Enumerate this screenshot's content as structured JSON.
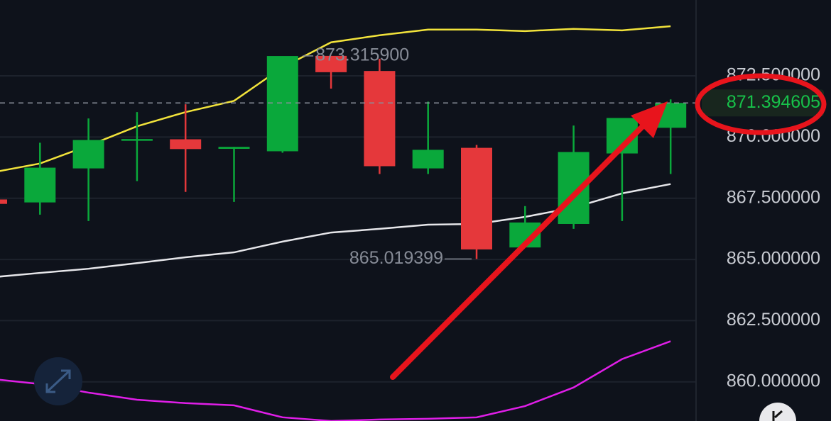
{
  "chart_data": {
    "type": "candlestick",
    "categories": [
      null,
      null,
      null,
      null,
      null,
      null,
      null,
      null,
      null,
      null,
      null,
      null,
      null,
      null,
      null
    ],
    "candles": {
      "open": [
        867.45,
        867.33,
        868.72,
        869.88,
        869.91,
        869.52,
        869.42,
        873.3159,
        872.7,
        868.72,
        869.56,
        865.49,
        866.45,
        869.33,
        870.38
      ],
      "high": [
        867.45,
        869.77,
        870.76,
        871.02,
        871.34,
        869.6,
        873.3,
        873.3159,
        873.2,
        871.45,
        869.68,
        867.18,
        870.47,
        870.78,
        871.54
      ],
      "low": [
        867.27,
        866.83,
        866.57,
        868.2,
        867.76,
        867.35,
        869.36,
        871.98,
        868.49,
        868.49,
        865.019399,
        865.49,
        866.25,
        866.57,
        868.49
      ],
      "close": [
        867.27,
        868.75,
        869.88,
        869.92,
        869.51,
        869.6,
        873.31,
        872.65,
        868.81,
        869.48,
        865.41,
        866.51,
        869.39,
        870.78,
        871.394605
      ],
      "up_color": "#0aa83b",
      "down_color": "#e5383b"
    },
    "bands": [
      {
        "color": "#f2e33b",
        "values": [
          868.55,
          868.92,
          869.65,
          870.44,
          871.02,
          871.48,
          872.85,
          873.87,
          874.16,
          874.39,
          874.39,
          874.33,
          874.42,
          874.36,
          874.53
        ]
      },
      {
        "color": "#e6e6ea",
        "values": [
          864.27,
          864.45,
          864.62,
          864.85,
          865.09,
          865.29,
          865.73,
          866.1,
          866.25,
          866.42,
          866.45,
          866.74,
          867.12,
          867.7,
          868.08
        ]
      },
      {
        "color": "#e01ee8",
        "values": [
          860.12,
          859.91,
          859.56,
          859.27,
          859.13,
          859.04,
          858.55,
          858.4,
          858.46,
          858.49,
          858.55,
          859.01,
          859.77,
          860.93,
          861.66
        ]
      }
    ],
    "max_label": "873.315900",
    "min_label": "865.019399",
    "last_label": "871.394605",
    "ylim": [
      858.4,
      875.6
    ],
    "yticks": [
      {
        "value": 860,
        "label": "860.000000"
      },
      {
        "value": 862.5,
        "label": "862.500000"
      },
      {
        "value": 865,
        "label": "865.000000"
      },
      {
        "value": 867.5,
        "label": "867.500000"
      },
      {
        "value": 870,
        "label": "870.000000"
      },
      {
        "value": 872.5,
        "label": "872.500000"
      }
    ],
    "grid": true
  }
}
